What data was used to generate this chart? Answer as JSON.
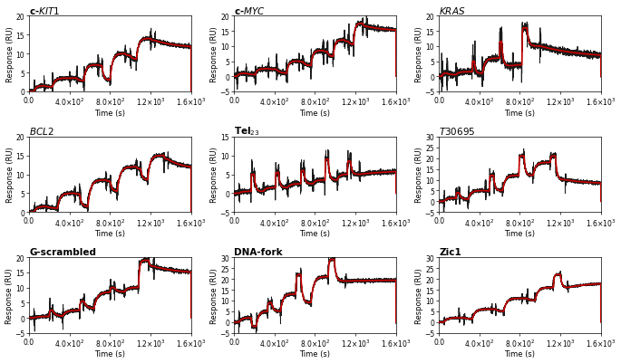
{
  "panels": [
    {
      "title_tex": "c-\\textit{KIT1}",
      "title_str": "c-KIT1",
      "ylim": [
        0,
        20
      ],
      "yticks": [
        0,
        5,
        10,
        15,
        20
      ],
      "ylabel": "Response (RU)"
    },
    {
      "title_tex": "c-\\textit{MYC}",
      "title_str": "c-MYC",
      "ylim": [
        -5,
        20
      ],
      "yticks": [
        -5,
        0,
        5,
        10,
        15,
        20
      ],
      "ylabel": "Response (RU)"
    },
    {
      "title_tex": "\\textit{KRAS}",
      "title_str": "KRAS",
      "ylim": [
        -5,
        20
      ],
      "yticks": [
        -5,
        0,
        5,
        10,
        15,
        20
      ],
      "ylabel": "Response (RU)"
    },
    {
      "title_tex": "\\textit{BCL2}",
      "title_str": "BCL2",
      "ylim": [
        0,
        20
      ],
      "yticks": [
        0,
        5,
        10,
        15,
        20
      ],
      "ylabel": "Response (RU)"
    },
    {
      "title_tex": "Tel$_{23}$",
      "title_str": "Tel23",
      "ylim": [
        -5,
        15
      ],
      "yticks": [
        -5,
        0,
        5,
        10,
        15
      ],
      "ylabel": "Response (RU)"
    },
    {
      "title_tex": "\\textit{T30695}",
      "title_str": "T30695",
      "ylim": [
        -5,
        30
      ],
      "yticks": [
        -5,
        0,
        5,
        10,
        15,
        20,
        25,
        30
      ],
      "ylabel": "Response (RU)"
    },
    {
      "title_tex": "G-scrambled",
      "title_str": "G-scrambled",
      "ylim": [
        -5,
        20
      ],
      "yticks": [
        -5,
        0,
        5,
        10,
        15,
        20
      ],
      "ylabel": "Response (RU)"
    },
    {
      "title_tex": "DNA-fork",
      "title_str": "DNA-fork",
      "ylim": [
        -5,
        30
      ],
      "yticks": [
        -5,
        0,
        5,
        10,
        15,
        20,
        25,
        30
      ],
      "ylabel": "Response (RU)"
    },
    {
      "title_tex": "Zic1",
      "title_str": "Zic1",
      "ylim": [
        -5,
        30
      ],
      "yticks": [
        -5,
        0,
        5,
        10,
        15,
        20,
        25,
        30
      ],
      "ylabel": "Response (RU)"
    }
  ],
  "xlim": [
    0,
    1600
  ],
  "xticks": [
    0,
    400,
    800,
    1200,
    1600
  ],
  "xlabel": "Time (s)",
  "red_color": "#cc0000",
  "black_color": "#1a1a1a",
  "bg_color": "#ffffff",
  "linewidth_red": 1.2,
  "linewidth_black": 0.7
}
